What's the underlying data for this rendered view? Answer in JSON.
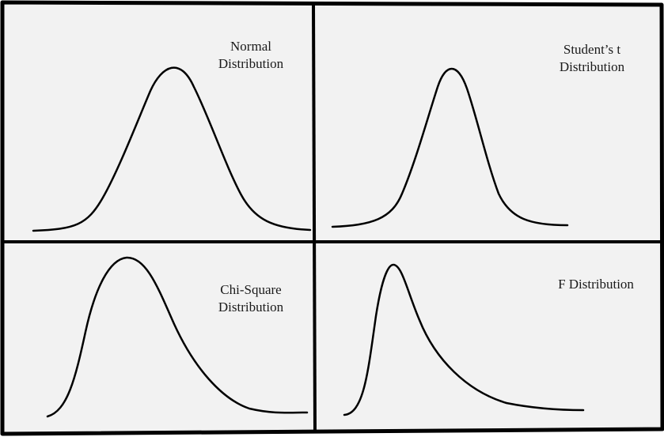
{
  "panels": [
    {
      "id": "normal",
      "label": "Normal\nDistribution"
    },
    {
      "id": "student-t",
      "label": "Student’s t\nDistribution"
    },
    {
      "id": "chi-square",
      "label": "Chi-Square\nDistribution"
    },
    {
      "id": "f",
      "label": "F Distribution"
    }
  ],
  "colors": {
    "background": "#f2f2f2",
    "frame": "#000000",
    "curve": "#000000",
    "text": "#1a1a1a"
  }
}
